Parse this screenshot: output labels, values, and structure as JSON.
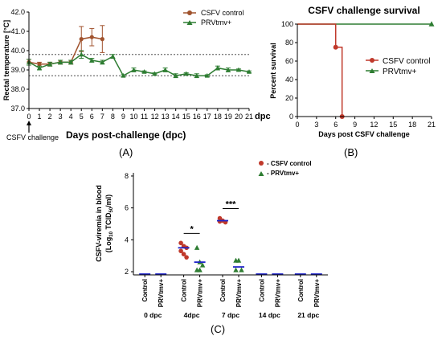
{
  "chart_data": [
    {
      "panel_label": "(A)",
      "type": "line",
      "ylabel": "Rectal temperature [°C]",
      "xlabel": "Days post-challenge (dpc)",
      "x_unit_label": "dpc",
      "challenge_label": "CSFV challenge",
      "ylim": [
        37.0,
        42.0
      ],
      "yticks": [
        "37.0",
        "38.0",
        "39.0",
        "40.0",
        "41.0",
        "42.0"
      ],
      "xlim": [
        0,
        21
      ],
      "xticks": [
        "0",
        "1",
        "2",
        "3",
        "4",
        "5",
        "6",
        "7",
        "8",
        "9",
        "10",
        "11",
        "12",
        "13",
        "14",
        "15",
        "16",
        "17",
        "18",
        "19",
        "20",
        "21"
      ],
      "reference_lines": [
        39.8,
        38.7
      ],
      "series": [
        {
          "name": "CSFV control",
          "color": "#a0522d",
          "marker": "circle",
          "x": [
            0,
            1,
            2,
            3,
            4,
            5,
            6,
            7
          ],
          "y": [
            39.4,
            39.3,
            39.3,
            39.4,
            39.4,
            40.6,
            40.7,
            40.6
          ],
          "err": [
            0.15,
            0.1,
            0.1,
            0.1,
            0.1,
            0.65,
            0.45,
            0.7
          ]
        },
        {
          "name": "PRVtmv+",
          "color": "#2e7d32",
          "marker": "triangle",
          "x": [
            0,
            1,
            2,
            3,
            4,
            5,
            6,
            7,
            8,
            9,
            10,
            11,
            12,
            13,
            14,
            15,
            16,
            17,
            18,
            19,
            20,
            21
          ],
          "y": [
            39.4,
            39.1,
            39.3,
            39.4,
            39.4,
            39.8,
            39.5,
            39.4,
            39.7,
            38.7,
            39.0,
            38.9,
            38.8,
            39.0,
            38.7,
            38.8,
            38.7,
            38.7,
            39.1,
            39.0,
            39.0,
            38.9
          ],
          "err": [
            0.15,
            0.1,
            0.1,
            0.1,
            0.1,
            0.2,
            0.1,
            0.1,
            0.1,
            0.05,
            0.1,
            0.05,
            0.05,
            0.1,
            0.1,
            0.05,
            0.1,
            0.05,
            0.1,
            0.1,
            0.05,
            0.05
          ]
        }
      ]
    },
    {
      "panel_label": "(B)",
      "type": "line",
      "title": "CSFV challenge survival",
      "ylabel": "Percent survival",
      "xlabel": "Days post CSFV challenge",
      "ylim": [
        0,
        100
      ],
      "yticks": [
        "0",
        "20",
        "40",
        "60",
        "80",
        "100"
      ],
      "xlim": [
        0,
        21
      ],
      "xticks": [
        "0",
        "3",
        "6",
        "9",
        "12",
        "15",
        "18",
        "21"
      ],
      "series": [
        {
          "name": "CSFV control",
          "color": "#c0392b",
          "marker": "circle",
          "step": true,
          "x": [
            0,
            6,
            6,
            7,
            7
          ],
          "y": [
            100,
            100,
            75,
            75,
            0
          ]
        },
        {
          "name": "PRVtmv+",
          "color": "#2e7d32",
          "marker": "triangle",
          "step": true,
          "x": [
            0,
            21
          ],
          "y": [
            100,
            100
          ]
        }
      ]
    },
    {
      "panel_label": "(C)",
      "type": "scatter",
      "ylabel_line1": "CSFV-viremia in blood",
      "ylabel_line2": "(Log10 TCID50/ml)",
      "ylim": [
        1.8,
        8.2
      ],
      "yticks": [
        "2",
        "4",
        "6",
        "8"
      ],
      "groups": [
        "0 dpc",
        "4dpc",
        "7 dpc",
        "14 dpc",
        "21 dpc"
      ],
      "subgroups": [
        "Control",
        "PRVtmv+"
      ],
      "significance": [
        {
          "group": "4dpc",
          "label": "*"
        },
        {
          "group": "7 dpc",
          "label": "***"
        }
      ],
      "series": [
        {
          "name": "CSFV control",
          "color": "#c0392b",
          "marker": "circle",
          "points": [
            [],
            [
              3.8,
              3.6,
              3.5,
              3.3,
              3.1,
              2.9
            ],
            [
              5.35,
              5.2,
              5.1,
              5.15
            ],
            [],
            []
          ],
          "means": [
            1.7,
            3.5,
            5.2,
            1.7,
            1.7
          ]
        },
        {
          "name": "PRVtmv+",
          "color": "#2e7d32",
          "marker": "triangle",
          "points": [
            [],
            [
              3.5,
              2.6,
              2.4,
              2.1,
              2.1
            ],
            [
              2.7,
              2.7,
              2.1,
              2.1
            ],
            [],
            []
          ],
          "means": [
            1.7,
            2.6,
            2.3,
            1.7,
            1.7
          ]
        }
      ]
    }
  ]
}
